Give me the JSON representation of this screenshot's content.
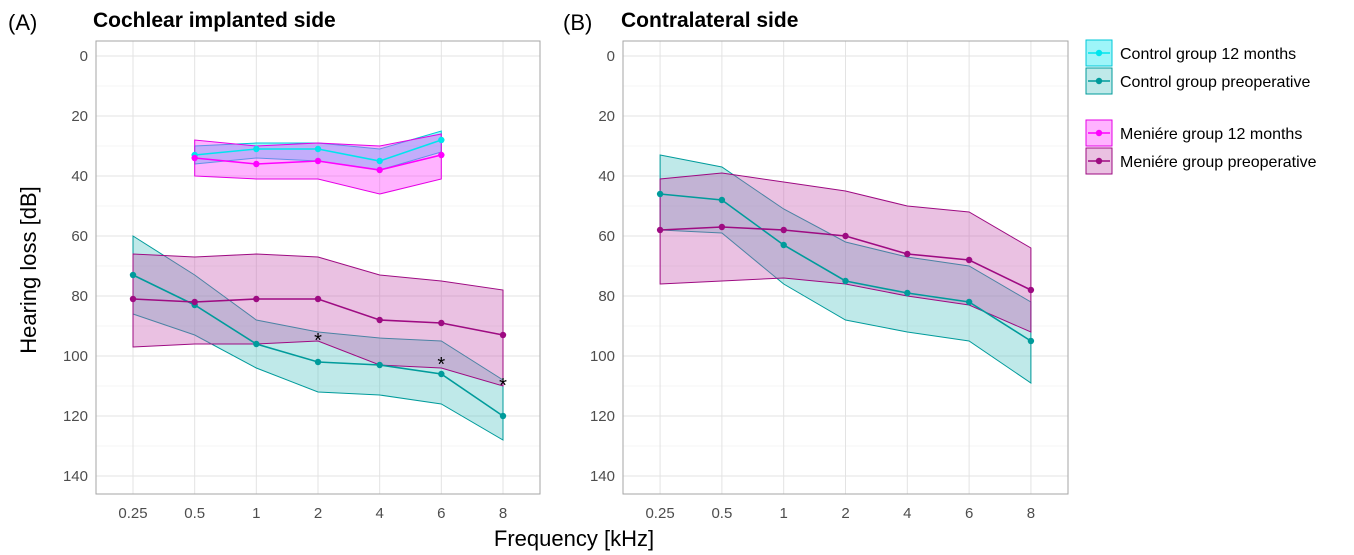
{
  "chart_data": {
    "type": "line",
    "x_axis": {
      "label": "Frequency [kHz]",
      "categories": [
        "0.25",
        "0.5",
        "1",
        "2",
        "4",
        "6",
        "8"
      ]
    },
    "y_axis": {
      "label": "Hearing loss [dB]",
      "ticks": [
        0,
        20,
        40,
        60,
        80,
        100,
        120,
        140
      ],
      "range": [
        -5,
        146
      ],
      "reversed": true
    },
    "grid": true,
    "legend_position": "right",
    "legend": [
      {
        "key": "ctrl12",
        "label": "Control group 12 months"
      },
      {
        "key": "ctrlpre",
        "label": "Control group preoperative"
      },
      {
        "key": "men12",
        "label": "Meniére group 12 months"
      },
      {
        "key": "menpre",
        "label": "Meniére group preoperative"
      }
    ],
    "colors": {
      "ctrl12": {
        "line": "#00e5ee",
        "fill": "#00e5ee",
        "border": "#00c8d8"
      },
      "ctrlpre": {
        "line": "#009b9b",
        "fill": "#56c6c6",
        "border": "#009b9b"
      },
      "men12": {
        "line": "#ff00ff",
        "fill": "#ff38ff",
        "border": "#e600e6"
      },
      "menpre": {
        "line": "#9e0b82",
        "fill": "#c85bb4",
        "border": "#9e0b82"
      }
    },
    "panels": [
      {
        "label": "(A)",
        "title": "Cochlear implanted side",
        "series": [
          {
            "key": "ctrl12",
            "x": [
              "0.5",
              "1",
              "2",
              "4",
              "6"
            ],
            "y": [
              33,
              31,
              31,
              35,
              28
            ],
            "lower": [
              30,
              29,
              29,
              31,
              25
            ],
            "upper": [
              36,
              34,
              35,
              38,
              32
            ]
          },
          {
            "key": "ctrlpre",
            "x": [
              "0.25",
              "0.5",
              "1",
              "2",
              "4",
              "6",
              "8"
            ],
            "y": [
              73,
              83,
              96,
              102,
              103,
              106,
              120
            ],
            "lower": [
              60,
              73,
              88,
              92,
              94,
              95,
              108
            ],
            "upper": [
              86,
              93,
              104,
              112,
              113,
              116,
              128
            ]
          },
          {
            "key": "men12",
            "x": [
              "0.5",
              "1",
              "2",
              "4",
              "6"
            ],
            "y": [
              34,
              36,
              35,
              38,
              33
            ],
            "lower": [
              28,
              30,
              29,
              30,
              26
            ],
            "upper": [
              40,
              41,
              41,
              46,
              41
            ]
          },
          {
            "key": "menpre",
            "x": [
              "0.25",
              "0.5",
              "1",
              "2",
              "4",
              "6",
              "8"
            ],
            "y": [
              81,
              82,
              81,
              81,
              88,
              89,
              93
            ],
            "lower": [
              66,
              67,
              66,
              67,
              73,
              75,
              78
            ],
            "upper": [
              97,
              96,
              96,
              95,
              103,
              104,
              110
            ]
          }
        ],
        "annotations": [
          {
            "x": "2",
            "y": 94,
            "text": "*"
          },
          {
            "x": "6",
            "y": 102,
            "text": "*"
          },
          {
            "x": "8",
            "y": 109,
            "text": "*"
          }
        ]
      },
      {
        "label": "(B)",
        "title": "Contralateral side",
        "series": [
          {
            "key": "ctrlpre",
            "x": [
              "0.25",
              "0.5",
              "1",
              "2",
              "4",
              "6",
              "8"
            ],
            "y": [
              46,
              48,
              63,
              75,
              79,
              82,
              95
            ],
            "lower": [
              33,
              37,
              51,
              62,
              67,
              70,
              82
            ],
            "upper": [
              58,
              59,
              76,
              88,
              92,
              95,
              109
            ]
          },
          {
            "key": "menpre",
            "x": [
              "0.25",
              "0.5",
              "1",
              "2",
              "4",
              "6",
              "8"
            ],
            "y": [
              58,
              57,
              58,
              60,
              66,
              68,
              78
            ],
            "lower": [
              41,
              39,
              42,
              45,
              50,
              52,
              64
            ],
            "upper": [
              76,
              75,
              74,
              76,
              80,
              83,
              92
            ]
          }
        ],
        "annotations": []
      }
    ]
  }
}
